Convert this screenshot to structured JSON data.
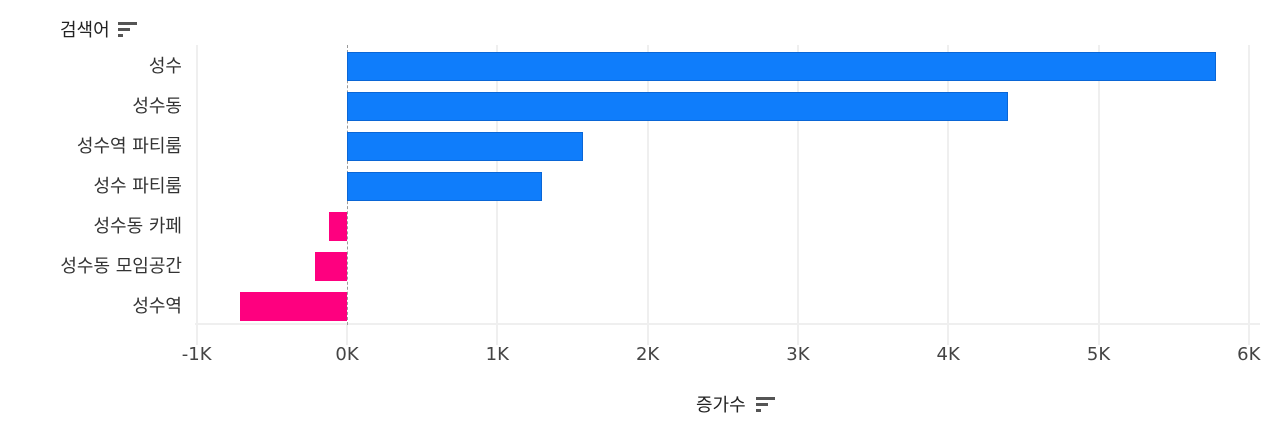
{
  "chart_data": {
    "type": "bar",
    "orientation": "horizontal",
    "title": "",
    "ylabel": "검색어",
    "xlabel": "증가수",
    "categories": [
      "성수",
      "성수동",
      "성수역 파티룸",
      "성수 파티룸",
      "성수동 카페",
      "성수동 모임공간",
      "성수역"
    ],
    "values": [
      5780,
      4400,
      1570,
      1300,
      -120,
      -210,
      -710
    ],
    "xlim": [
      -1000,
      6000
    ],
    "xticks": [
      "-1K",
      "0K",
      "1K",
      "2K",
      "3K",
      "4K",
      "5K",
      "6K"
    ],
    "grid": true,
    "colors": {
      "positive": "#0f7dfb",
      "negative": "#fe007f"
    },
    "legend": null
  },
  "axes": {
    "y_title": "검색어",
    "x_title": "증가수",
    "y_sort_icon": "sort-descending-icon",
    "x_sort_icon": "sort-descending-icon"
  }
}
